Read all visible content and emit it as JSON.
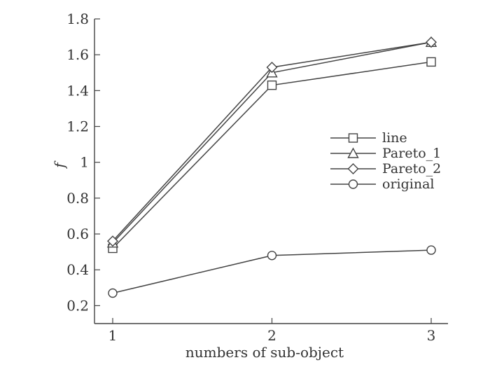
{
  "chart_data": {
    "type": "line",
    "title": "",
    "xlabel": "numbers of sub-object",
    "ylabel": "f",
    "x": [
      1,
      2,
      3
    ],
    "x_ticks": [
      "1",
      "2",
      "3"
    ],
    "ylim": [
      0.1,
      1.8
    ],
    "y_ticks": [
      "0.2",
      "0.4",
      "0.6",
      "0.8",
      "1",
      "1.2",
      "1.4",
      "1.6",
      "1.8"
    ],
    "grid": false,
    "legend_position": "right",
    "series": [
      {
        "name": "line",
        "marker": "square",
        "values": [
          0.52,
          1.43,
          1.56
        ]
      },
      {
        "name": "Pareto_1",
        "marker": "triangle",
        "values": [
          0.55,
          1.5,
          1.67
        ]
      },
      {
        "name": "Pareto_2",
        "marker": "diamond",
        "values": [
          0.56,
          1.53,
          1.67
        ]
      },
      {
        "name": "original",
        "marker": "circle",
        "values": [
          0.27,
          0.48,
          0.51
        ]
      }
    ]
  }
}
